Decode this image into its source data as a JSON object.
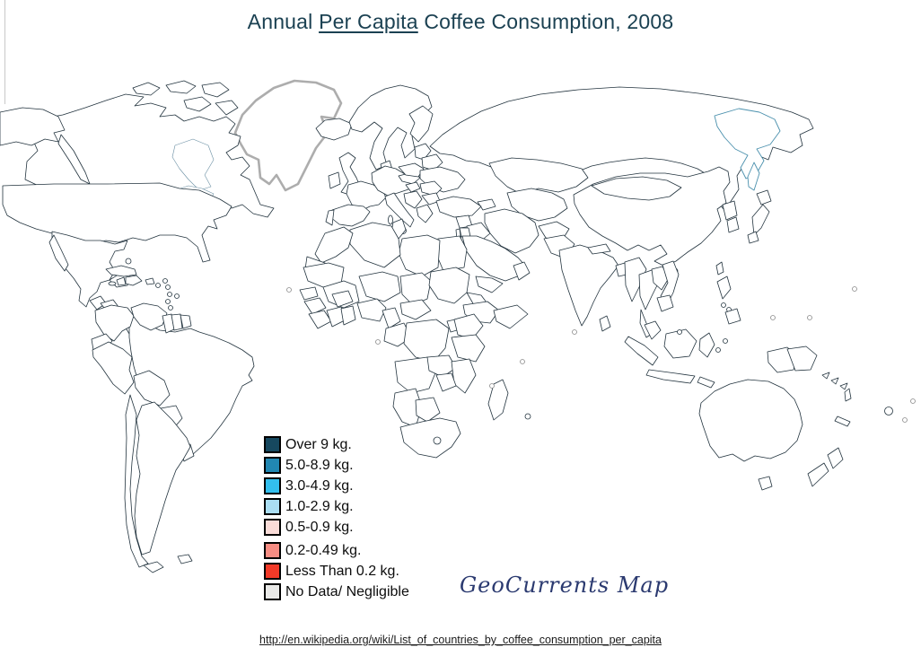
{
  "title": {
    "prefix": "Annual ",
    "underlined": "Per Capita",
    "suffix": " Coffee Consumption, 2008"
  },
  "legend": {
    "gap_before_index": 5,
    "items": [
      {
        "key": "over-9",
        "label": "Over 9 kg.",
        "color": "#16485f"
      },
      {
        "key": "5.0-8.9",
        "label": "5.0-8.9 kg.",
        "color": "#2187b2"
      },
      {
        "key": "3.0-4.9",
        "label": "3.0-4.9 kg.",
        "color": "#33bfee"
      },
      {
        "key": "1.0-2.9",
        "label": "1.0-2.9 kg.",
        "color": "#aadef3"
      },
      {
        "key": "0.5-0.9",
        "label": "0.5-0.9 kg.",
        "color": "#fadcd8"
      },
      {
        "key": "0.2-0.49",
        "label": "0.2-0.49 kg.",
        "color": "#f78d83"
      },
      {
        "key": "less-than-0.2",
        "label": "Less Than 0.2 kg.",
        "color": "#f23a28"
      },
      {
        "key": "no-data",
        "label": "No Data/ Negligible",
        "color": "#e9e9e7"
      }
    ]
  },
  "attribution": "GeoCurrents Map",
  "source_url": "http://en.wikipedia.org/wiki/List_of_countries_by_coffee_consumption_per_capita",
  "colors": {
    "background": "#ffffff",
    "border": "#22333e",
    "blank": "#ffffff",
    "title_text": "#1b4152",
    "attribution_text": "#2b3a70",
    "url_text": "#1a1a1a",
    "greenland_outline": "#adadad"
  },
  "map": {
    "regions": {
      "greenland": "blank",
      "iceland": "over-9",
      "scandinavia": "over-9",
      "finland": "over-9",
      "denmark": "over-9",
      "canada": "5.0-8.9",
      "canada-arctic-islands": "5.0-8.9",
      "alaska": "3.0-4.9",
      "usa": "3.0-4.9",
      "mexico": "1.0-2.9",
      "guatemala": "3.0-4.9",
      "honduras": "5.0-8.9",
      "nicaragua": "3.0-4.9",
      "costa-rica": "5.0-8.9",
      "panama": "3.0-4.9",
      "cuba": "1.0-2.9",
      "jamaica": "blank",
      "haiti": "less-than-0.2",
      "dominican-republic": "3.0-4.9",
      "puerto-rico": "blank",
      "bahamas": "no-data",
      "lesser-antilles": "less-than-0.2",
      "antilles-small": "no-data",
      "colombia": "1.0-2.9",
      "venezuela": "1.0-2.9",
      "guyana": "no-data",
      "suriname": "0.5-0.9",
      "french-guiana": "no-data",
      "ecuador": "0.5-0.9",
      "peru": "0.2-0.49",
      "brazil": "5.0-8.9",
      "bolivia": "0.2-0.49",
      "paraguay": "0.2-0.49",
      "chile": "0.5-0.9",
      "argentina": "1.0-2.9",
      "uruguay": "0.5-0.9",
      "tierra-del-fuego": "1.0-2.9",
      "falkland-islands": "1.0-2.9",
      "uk": "3.0-4.9",
      "ireland": "1.0-2.9",
      "france": "5.0-8.9",
      "spain": "3.0-4.9",
      "portugal": "5.0-8.9",
      "germany-central-europe": "5.0-8.9",
      "italy": "5.0-8.9",
      "czech-slovakia": "3.0-4.9",
      "poland": "1.0-2.9",
      "baltics": "3.0-4.9",
      "belarus": "0.5-0.9",
      "ukraine": "1.0-2.9",
      "hungary": "3.0-4.9",
      "romania": "3.0-4.9",
      "balkans": "5.0-8.9",
      "bulgaria": "3.0-4.9",
      "greece": "5.0-8.9",
      "russia": "1.0-2.9",
      "russia-far-east": "blank",
      "sakhalin": "blank",
      "kazakhstan": "0.2-0.49",
      "central-asia": "no-data",
      "caucasus": "no-data",
      "turkey": "0.2-0.49",
      "syria": "0.2-0.49",
      "iraq": "no-data",
      "jordan": "0.5-0.9",
      "israel": "3.0-4.9",
      "iran": "less-than-0.2",
      "afghanistan": "no-data",
      "pakistan": "no-data",
      "saudi-arabia": "1.0-2.9",
      "yemen": "0.2-0.49",
      "oman": "no-data",
      "egypt": "less-than-0.2",
      "libya": "blank",
      "tunisia": "5.0-8.9",
      "algeria": "3.0-4.9",
      "morocco": "0.2-0.49",
      "western-sahara": "no-data",
      "mauritania": "less-than-0.2",
      "mali": "no-data",
      "niger": "0.2-0.49",
      "chad": "no-data",
      "sudan": "0.5-0.9",
      "eritrea": "0.2-0.49",
      "ethiopia": "1.0-2.9",
      "somalia": "no-data",
      "senegal": "less-than-0.2",
      "guinea": "0.2-0.49",
      "sierra-leone-liberia": "0.2-0.49",
      "ivory-coast": "1.0-2.9",
      "ghana": "no-data",
      "burkina-faso": "less-than-0.2",
      "nigeria": "0.2-0.49",
      "cameroon": "0.2-0.49",
      "central-african-republic": "no-data",
      "congo-gabon": "no-data",
      "dr-congo": "0.2-0.49",
      "uganda": "0.2-0.49",
      "kenya": "less-than-0.2",
      "tanzania": "less-than-0.2",
      "angola": "less-than-0.2",
      "zambia": "no-data",
      "mozambique": "no-data",
      "zimbabwe": "no-data",
      "namibia": "less-than-0.2",
      "botswana": "0.5-0.9",
      "south-africa": "0.2-0.49",
      "lesotho": "less-than-0.2",
      "madagascar": "1.0-2.9",
      "mauritius": "less-than-0.2",
      "china": "less-than-0.2",
      "mongolia": "0.2-0.49",
      "north-korea": "1.0-2.9",
      "south-korea": "3.0-4.9",
      "japan": "3.0-4.9",
      "taiwan": "blank",
      "india": "less-than-0.2",
      "sri-lanka": "less-than-0.2",
      "nepal": "no-data",
      "bangladesh": "no-data",
      "myanmar": "no-data",
      "thailand": "0.5-0.9",
      "laos": "1.0-2.9",
      "vietnam": "0.5-0.9",
      "cambodia": "0.5-0.9",
      "malaysia": "0.5-0.9",
      "brunei": "3.0-4.9",
      "indonesia": "0.5-0.9",
      "philippines": "0.5-0.9",
      "papua-new-guinea-west": "0.5-0.9",
      "papua-new-guinea": "no-data",
      "solomon-islands": "3.0-4.9",
      "australia": "3.0-4.9",
      "tasmania": "3.0-4.9",
      "new-zealand": "3.0-4.9",
      "new-caledonia": "blank",
      "vanuatu": "0.2-0.49",
      "fiji": "less-than-0.2",
      "ocean-islands": "blank"
    }
  }
}
